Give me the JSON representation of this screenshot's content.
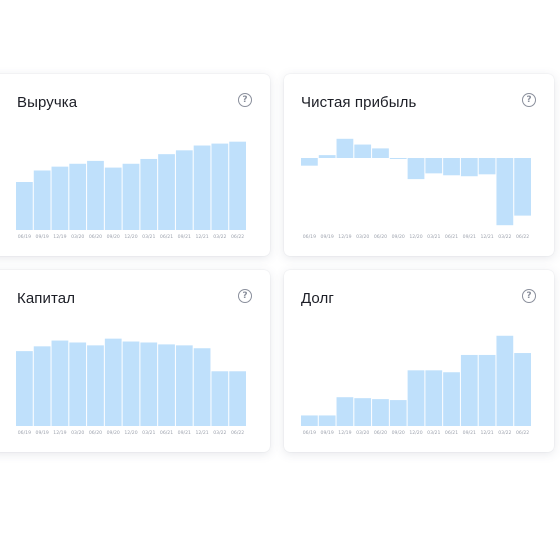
{
  "cards": [
    {
      "title": "Выручка",
      "help_icon": "question-circle-icon"
    },
    {
      "title": "Чистая прибыль",
      "help_icon": "question-circle-icon"
    },
    {
      "title": "Капитал",
      "help_icon": "question-circle-icon"
    },
    {
      "title": "Долг",
      "help_icon": "question-circle-icon"
    }
  ],
  "chart_data": [
    {
      "type": "bar",
      "title": "Выручка",
      "categories": [
        "06/19",
        "09/19",
        "12/19",
        "03/20",
        "06/20",
        "09/20",
        "12/20",
        "03/21",
        "06/21",
        "09/21",
        "12/21",
        "03/22",
        "06/22"
      ],
      "tick_labels": [
        "06/19",
        "09/19",
        "12/19",
        "03/20",
        "06/20",
        "09/20",
        "12/20",
        "03/21",
        "06/21",
        "09/21",
        "12/21",
        "03/22",
        "06/22"
      ],
      "values": [
        50,
        62,
        66,
        69,
        72,
        65,
        69,
        74,
        79,
        83,
        88,
        90,
        92
      ],
      "ylim": [
        0,
        100
      ],
      "color": "#bfe0fb"
    },
    {
      "type": "bar",
      "title": "Чистая прибыль",
      "categories": [
        "06/19",
        "09/19",
        "12/19",
        "03/20",
        "06/20",
        "09/20",
        "12/20",
        "03/21",
        "06/21",
        "09/21",
        "12/21",
        "03/22",
        "06/22"
      ],
      "tick_labels": [
        "06/19",
        "09/19",
        "12/19",
        "03/20",
        "06/20",
        "09/20",
        "12/20",
        "03/21",
        "06/21",
        "09/21",
        "12/21",
        "03/22",
        "06/22"
      ],
      "values": [
        -8,
        3,
        20,
        14,
        10,
        0,
        -22,
        -16,
        -18,
        -19,
        -17,
        -70,
        -60
      ],
      "ylim": [
        -75,
        25
      ],
      "color": "#bfe0fb"
    },
    {
      "type": "bar",
      "title": "Капитал",
      "categories": [
        "06/19",
        "09/19",
        "12/19",
        "03/20",
        "06/20",
        "09/20",
        "12/20",
        "03/21",
        "06/21",
        "09/21",
        "12/21",
        "03/22",
        "06/22"
      ],
      "tick_labels": [
        "06/19",
        "09/19",
        "12/19",
        "03/20",
        "06/20",
        "09/20",
        "12/20",
        "03/21",
        "06/21",
        "09/21",
        "12/21",
        "03/22",
        "06/22"
      ],
      "values": [
        78,
        83,
        89,
        87,
        84,
        91,
        88,
        87,
        85,
        84,
        81,
        57,
        57
      ],
      "ylim": [
        0,
        100
      ],
      "color": "#bfe0fb"
    },
    {
      "type": "bar",
      "title": "Долг",
      "categories": [
        "06/19",
        "09/19",
        "12/19",
        "03/20",
        "06/20",
        "09/20",
        "12/20",
        "03/21",
        "06/21",
        "09/21",
        "12/21",
        "03/22",
        "06/22"
      ],
      "tick_labels": [
        "06/19",
        "09/19",
        "12/19",
        "03/20",
        "06/20",
        "09/20",
        "12/20",
        "03/21",
        "06/21",
        "09/21",
        "12/21",
        "03/22",
        "06/22"
      ],
      "values": [
        11,
        11,
        30,
        29,
        28,
        27,
        58,
        58,
        56,
        74,
        74,
        94,
        76
      ],
      "ylim": [
        0,
        100
      ],
      "color": "#bfe0fb"
    }
  ]
}
